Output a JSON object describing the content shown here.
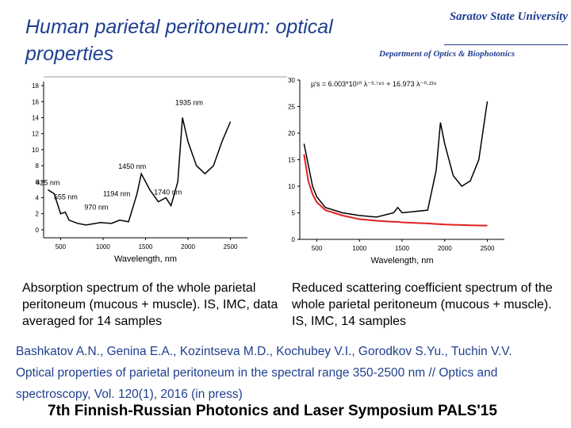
{
  "header": {
    "title": "Human parietal peritoneum: optical properties",
    "university": "Saratov State University",
    "department": "Department of Optics & Biophotonics"
  },
  "chart_data": [
    {
      "type": "line",
      "x_label": "Wavelength, nm",
      "x": [
        350,
        425,
        500,
        555,
        600,
        700,
        800,
        970,
        1100,
        1194,
        1300,
        1400,
        1450,
        1550,
        1650,
        1740,
        1800,
        1880,
        1935,
        2000,
        2100,
        2200,
        2300,
        2400,
        2500
      ],
      "series": [
        {
          "color": "#000000",
          "values": [
            5,
            4.5,
            2,
            2.2,
            1.2,
            0.8,
            0.6,
            0.9,
            0.8,
            1.2,
            1.0,
            4.5,
            7,
            5,
            3.5,
            4,
            3,
            6,
            14,
            11,
            8,
            7,
            8,
            11,
            13.5
          ]
        }
      ],
      "xlim": [
        300,
        2700
      ],
      "ylim": [
        -1,
        18.5
      ],
      "xticks": [
        500,
        1000,
        1500,
        2000,
        2500
      ],
      "yticks": [
        0,
        2,
        4,
        6,
        8,
        10,
        12,
        14,
        16,
        18
      ],
      "annotations": [
        "1935 nm",
        "1450 nm",
        "425 nm",
        "555 nm",
        "1194 nm",
        "1740 nm",
        "970 nm"
      ]
    },
    {
      "type": "line",
      "x_label": "Wavelength, nm",
      "formula": "µ′s = 6.003*10¹⁰ λ⁻³·⁷⁸⁵ + 16.973 λ⁻⁰·²¹⁶",
      "x": [
        350,
        400,
        450,
        500,
        600,
        700,
        800,
        1000,
        1200,
        1400,
        1450,
        1500,
        1800,
        1900,
        1950,
        2000,
        2100,
        2200,
        2300,
        2400,
        2500
      ],
      "series": [
        {
          "color": "#000000",
          "values": [
            18,
            14,
            10,
            8,
            6,
            5.5,
            5,
            4.5,
            4.2,
            5,
            6,
            5,
            5.5,
            13,
            22,
            18,
            12,
            10,
            11,
            15,
            26
          ]
        },
        {
          "color": "#e02020",
          "values": [
            16,
            11,
            8.5,
            7,
            5.5,
            5,
            4.5,
            3.8,
            3.5,
            3.3,
            3.3,
            3.2,
            3.0,
            2.9,
            2.85,
            2.8,
            2.75,
            2.7,
            2.65,
            2.62,
            2.6
          ]
        }
      ],
      "xlim": [
        300,
        2700
      ],
      "ylim": [
        0,
        30
      ],
      "xticks": [
        500,
        1000,
        1500,
        2000,
        2500
      ],
      "yticks": [
        0,
        5,
        10,
        15,
        20,
        25,
        30
      ]
    }
  ],
  "captions": [
    "Absorption spectrum of the whole parietal peritoneum (mucous + muscle). IS, IMC, data averaged for 14 samples",
    "Reduced scattering coefficient spectrum of the whole parietal peritoneum (mucous + muscle). IS, IMC, 14 samples"
  ],
  "reference": "Bashkatov A.N., Genina E.A., Kozintseva M.D., Kochubey V.I., Gorodkov S.Yu., Tuchin V.V. Optical properties of parietal peritoneum in the spectral range 350-2500 nm // Optics and spectroscopy, Vol. 120(1), 2016 (in press)",
  "footer": "7th Finnish-Russian Photonics and Laser Symposium PALS'15"
}
